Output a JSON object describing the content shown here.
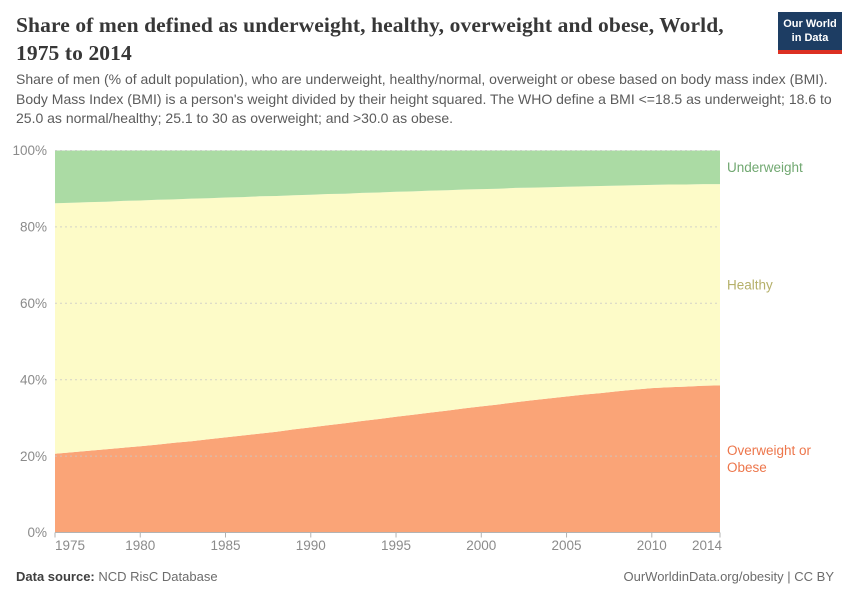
{
  "header": {
    "title": "Share of men defined as underweight, healthy, overweight and obese, World, 1975 to 2014",
    "logo_line1": "Our World",
    "logo_line2": "in Data",
    "logo_bg": "#1d3d63",
    "logo_stripe": "#dc3022"
  },
  "subtitle": "Share of men (% of adult population), who are underweight, healthy/normal, overweight or obese based on body mass index (BMI). Body Mass Index (BMI) is a person's weight divided by their height squared. The WHO define a BMI <=18.5 as underweight; 18.6 to 25.0 as normal/healthy; 25.1 to 30 as overweight; and >30.0 as obese.",
  "footer": {
    "source_label": "Data source:",
    "source_value": " NCD RisC Database",
    "rights": "OurWorldinData.org/obesity | CC BY"
  },
  "chart_data": {
    "type": "area",
    "stacked": true,
    "title": "Share of men defined as underweight, healthy, overweight and obese, World, 1975 to 2014",
    "xlabel": "",
    "ylabel": "",
    "ylim": [
      0,
      100
    ],
    "xlim": [
      1975,
      2014
    ],
    "grid": "dashed-horizontal",
    "legend_position": "right-margin",
    "x": [
      1975,
      1976,
      1977,
      1978,
      1979,
      1980,
      1981,
      1982,
      1983,
      1984,
      1985,
      1986,
      1987,
      1988,
      1989,
      1990,
      1991,
      1992,
      1993,
      1994,
      1995,
      1996,
      1997,
      1998,
      1999,
      2000,
      2001,
      2002,
      2003,
      2004,
      2005,
      2006,
      2007,
      2008,
      2009,
      2010,
      2011,
      2012,
      2013,
      2014
    ],
    "series": [
      {
        "name": "Overweight or Obese",
        "label_lines": [
          "Overweight or",
          "Obese"
        ],
        "color": "#FAA477",
        "label_color": "#ED764B",
        "values": [
          20.6,
          21.0,
          21.4,
          21.8,
          22.2,
          22.6,
          23.0,
          23.5,
          23.9,
          24.4,
          24.9,
          25.4,
          25.9,
          26.4,
          27.0,
          27.5,
          28.1,
          28.6,
          29.2,
          29.7,
          30.3,
          30.8,
          31.4,
          31.9,
          32.5,
          33.0,
          33.5,
          34.1,
          34.6,
          35.1,
          35.6,
          36.1,
          36.5,
          37.0,
          37.4,
          37.8,
          38.0,
          38.2,
          38.4,
          38.5
        ]
      },
      {
        "name": "Healthy",
        "label_lines": [
          "Healthy"
        ],
        "color": "#FDFBC8",
        "label_color": "#B5B06A",
        "values": [
          65.6,
          65.3,
          65.1,
          64.8,
          64.6,
          64.3,
          64.1,
          63.7,
          63.5,
          63.1,
          62.8,
          62.4,
          62.1,
          61.7,
          61.3,
          60.9,
          60.5,
          60.1,
          59.7,
          59.3,
          58.9,
          58.5,
          58.1,
          57.7,
          57.3,
          56.9,
          56.5,
          56.1,
          55.7,
          55.3,
          54.9,
          54.5,
          54.2,
          53.8,
          53.5,
          53.2,
          53.1,
          52.9,
          52.8,
          52.7
        ]
      },
      {
        "name": "Underweight",
        "label_lines": [
          "Underweight"
        ],
        "color": "#ABDBA4",
        "label_color": "#71A871",
        "values": [
          13.8,
          13.7,
          13.5,
          13.4,
          13.2,
          13.1,
          12.9,
          12.8,
          12.6,
          12.5,
          12.3,
          12.2,
          12.0,
          11.9,
          11.7,
          11.6,
          11.4,
          11.3,
          11.1,
          11.0,
          10.8,
          10.7,
          10.5,
          10.4,
          10.2,
          10.1,
          10.0,
          9.8,
          9.7,
          9.6,
          9.5,
          9.4,
          9.3,
          9.2,
          9.1,
          9.0,
          8.9,
          8.9,
          8.8,
          8.8
        ]
      }
    ],
    "y_ticks": [
      0,
      20,
      40,
      60,
      80,
      100
    ],
    "y_tick_labels": [
      "0%",
      "20%",
      "40%",
      "60%",
      "80%",
      "100%"
    ],
    "x_ticks": [
      1975,
      1980,
      1985,
      1990,
      1995,
      2000,
      2005,
      2010,
      2014
    ],
    "x_tick_labels": [
      "1975",
      "1980",
      "1985",
      "1990",
      "1995",
      "2000",
      "2005",
      "2010",
      "2014"
    ],
    "axis_color": "#b3b3b3",
    "grid_color": "#c9c9c9",
    "tick_label_color": "#8b8b8b"
  }
}
